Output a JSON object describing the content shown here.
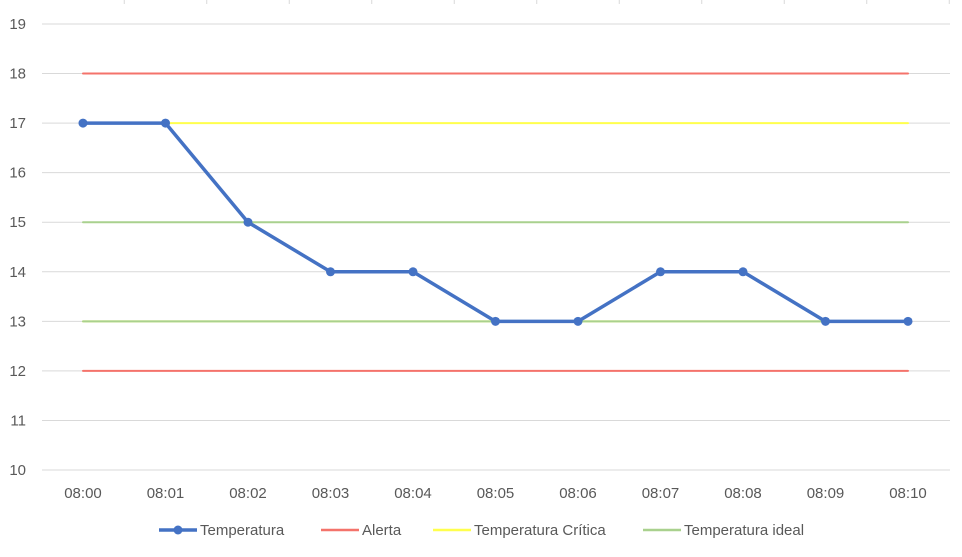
{
  "chart_data": {
    "type": "line",
    "title": "",
    "xlabel": "",
    "ylabel": "",
    "categories": [
      "08:00",
      "08:01",
      "08:02",
      "08:03",
      "08:04",
      "08:05",
      "08:06",
      "08:07",
      "08:08",
      "08:09",
      "08:10"
    ],
    "ylim": [
      10,
      19
    ],
    "yticks": [
      10,
      11,
      12,
      13,
      14,
      15,
      16,
      17,
      18,
      19
    ],
    "grid": "horizontal",
    "legend_position": "bottom",
    "series": [
      {
        "name": "Temperatura",
        "color": "#4472c4",
        "markers": true,
        "values": [
          17,
          17,
          15,
          14,
          14,
          13,
          13,
          14,
          14,
          13,
          13
        ]
      },
      {
        "name": "Alerta",
        "color": "#f4736b",
        "markers": false,
        "values": [
          18,
          18,
          18,
          18,
          18,
          18,
          18,
          18,
          18,
          18,
          18
        ],
        "values_lower": [
          12,
          12,
          12,
          12,
          12,
          12,
          12,
          12,
          12,
          12,
          12
        ]
      },
      {
        "name": "Temperatura Crítica",
        "color": "#ffff4d",
        "markers": false,
        "values": [
          17,
          17,
          17,
          17,
          17,
          17,
          17,
          17,
          17,
          17,
          17
        ],
        "values_lower": [
          13,
          13,
          13,
          13,
          13,
          13,
          13,
          13,
          13,
          13,
          13
        ]
      },
      {
        "name": "Temperatura ideal",
        "color": "#a9d18e",
        "markers": false,
        "values": [
          15,
          15,
          15,
          15,
          15,
          15,
          15,
          15,
          15,
          15,
          15
        ],
        "values_lower": [
          13,
          13,
          13,
          13,
          13,
          13,
          13,
          13,
          13,
          13,
          13
        ]
      }
    ]
  }
}
